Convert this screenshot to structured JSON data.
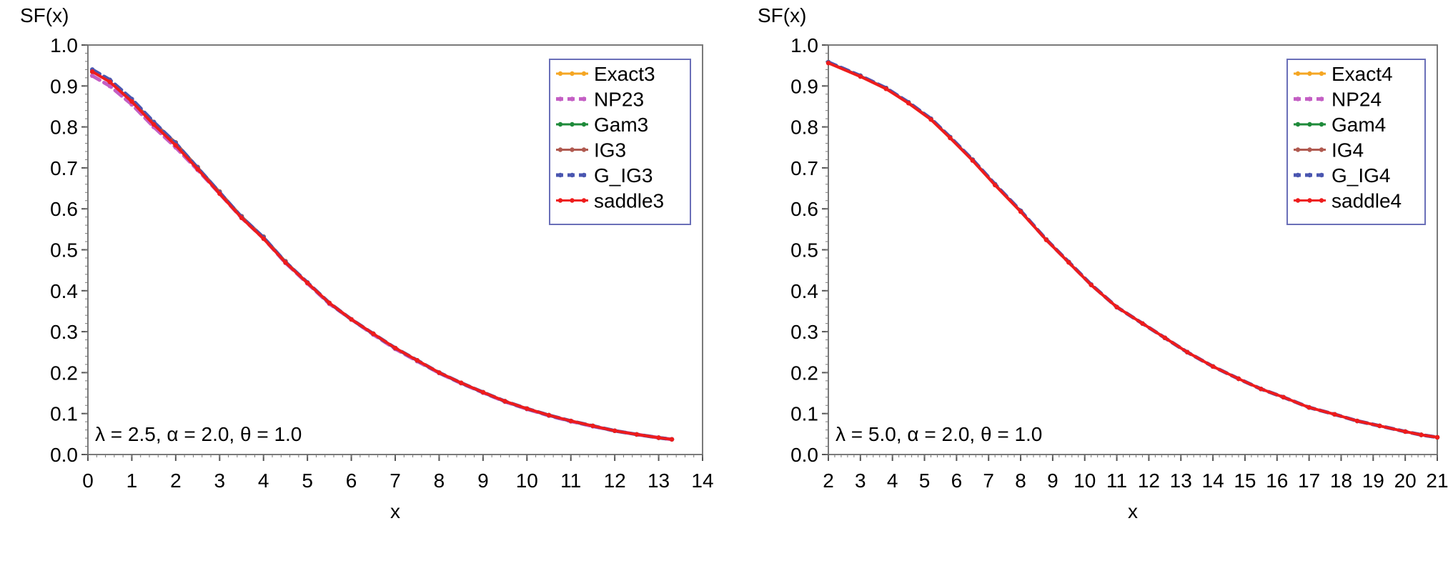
{
  "colors": {
    "exact": "#f5a623",
    "np2": "#c45fc4",
    "gam": "#1e8a3a",
    "ig": "#b05a50",
    "g_ig": "#4a56b0",
    "saddle": "#ee1c1c",
    "legend_border": "#6a6fb8",
    "frame": "#7a7a7a"
  },
  "chart_data": [
    {
      "type": "line",
      "ylabel": "SF(x)",
      "xlabel": "x",
      "xlim": [
        0,
        14
      ],
      "ylim": [
        0,
        1
      ],
      "xticks": [
        "0",
        "1",
        "2",
        "3",
        "4",
        "5",
        "6",
        "7",
        "8",
        "9",
        "10",
        "11",
        "12",
        "13",
        "14"
      ],
      "yticks": [
        "0.0",
        "0.1",
        "0.2",
        "0.3",
        "0.4",
        "0.5",
        "0.6",
        "0.7",
        "0.8",
        "0.9",
        "1.0"
      ],
      "annotation": "λ = 2.5, α = 2.0, θ = 1.0",
      "legend_position": "top-right",
      "x": [
        0.1,
        0.5,
        1.0,
        1.5,
        2.0,
        2.5,
        3.0,
        3.5,
        4.0,
        4.5,
        5.0,
        5.5,
        6.0,
        6.5,
        7.0,
        7.5,
        8.0,
        8.5,
        9.0,
        9.5,
        10.0,
        10.5,
        11.0,
        11.5,
        12.0,
        12.5,
        13.0,
        13.3
      ],
      "series": [
        {
          "name": "Exact3",
          "color_key": "exact",
          "style": "solid",
          "values": [
            0.935,
            0.91,
            0.865,
            0.81,
            0.76,
            0.7,
            0.64,
            0.58,
            0.53,
            0.47,
            0.42,
            0.37,
            0.33,
            0.295,
            0.26,
            0.23,
            0.2,
            0.175,
            0.152,
            0.13,
            0.112,
            0.096,
            0.082,
            0.07,
            0.058,
            0.049,
            0.041,
            0.037
          ]
        },
        {
          "name": "NP23",
          "color_key": "np2",
          "style": "dashed",
          "values": [
            0.925,
            0.9,
            0.855,
            0.8,
            0.75,
            0.695,
            0.637,
            0.578,
            0.528,
            0.468,
            0.418,
            0.368,
            0.33,
            0.293,
            0.258,
            0.228,
            0.199,
            0.174,
            0.151,
            0.129,
            0.111,
            0.095,
            0.081,
            0.069,
            0.058,
            0.049,
            0.041,
            0.037
          ]
        },
        {
          "name": "Gam3",
          "color_key": "gam",
          "style": "solid",
          "values": [
            0.935,
            0.91,
            0.865,
            0.812,
            0.762,
            0.702,
            0.642,
            0.582,
            0.532,
            0.472,
            0.42,
            0.37,
            0.33,
            0.295,
            0.26,
            0.23,
            0.2,
            0.175,
            0.152,
            0.13,
            0.112,
            0.096,
            0.082,
            0.07,
            0.058,
            0.049,
            0.041,
            0.037
          ]
        },
        {
          "name": "IG3",
          "color_key": "ig",
          "style": "solid",
          "values": [
            0.935,
            0.91,
            0.865,
            0.812,
            0.762,
            0.702,
            0.642,
            0.582,
            0.532,
            0.472,
            0.42,
            0.37,
            0.33,
            0.295,
            0.26,
            0.23,
            0.2,
            0.175,
            0.152,
            0.13,
            0.112,
            0.096,
            0.082,
            0.07,
            0.058,
            0.049,
            0.041,
            0.037
          ]
        },
        {
          "name": "G_IG3",
          "color_key": "g_ig",
          "style": "dashed",
          "values": [
            0.94,
            0.915,
            0.868,
            0.812,
            0.76,
            0.7,
            0.64,
            0.58,
            0.53,
            0.47,
            0.42,
            0.37,
            0.33,
            0.295,
            0.26,
            0.23,
            0.2,
            0.175,
            0.152,
            0.13,
            0.112,
            0.096,
            0.082,
            0.07,
            0.058,
            0.049,
            0.041,
            0.037
          ]
        },
        {
          "name": "saddle3",
          "color_key": "saddle",
          "style": "solid",
          "values": [
            0.935,
            0.91,
            0.862,
            0.806,
            0.755,
            0.697,
            0.637,
            0.578,
            0.527,
            0.469,
            0.419,
            0.37,
            0.33,
            0.295,
            0.26,
            0.23,
            0.2,
            0.175,
            0.152,
            0.13,
            0.112,
            0.096,
            0.082,
            0.07,
            0.058,
            0.049,
            0.041,
            0.037
          ]
        }
      ]
    },
    {
      "type": "line",
      "ylabel": "SF(x)",
      "xlabel": "x",
      "xlim": [
        2,
        21
      ],
      "ylim": [
        0,
        1
      ],
      "xticks": [
        "2",
        "3",
        "4",
        "5",
        "6",
        "7",
        "8",
        "9",
        "10",
        "11",
        "12",
        "13",
        "14",
        "15",
        "16",
        "17",
        "18",
        "19",
        "20",
        "21"
      ],
      "yticks": [
        "0.0",
        "0.1",
        "0.2",
        "0.3",
        "0.4",
        "0.5",
        "0.6",
        "0.7",
        "0.8",
        "0.9",
        "1.0"
      ],
      "annotation": "λ = 5.0, α = 2.0, θ = 1.0",
      "legend_position": "top-right",
      "x": [
        2.0,
        3.0,
        3.8,
        4.5,
        5.2,
        5.8,
        6.5,
        7.2,
        8.0,
        8.8,
        9.5,
        10.2,
        11.0,
        11.8,
        12.5,
        13.2,
        14.0,
        14.8,
        15.5,
        16.2,
        17.0,
        17.8,
        18.5,
        19.2,
        20.0,
        20.5,
        21.0
      ],
      "series": [
        {
          "name": "Exact4",
          "color_key": "exact",
          "style": "solid",
          "values": [
            0.958,
            0.925,
            0.895,
            0.86,
            0.82,
            0.775,
            0.72,
            0.66,
            0.595,
            0.525,
            0.47,
            0.415,
            0.36,
            0.32,
            0.285,
            0.25,
            0.215,
            0.185,
            0.16,
            0.14,
            0.115,
            0.098,
            0.082,
            0.07,
            0.056,
            0.048,
            0.042
          ]
        },
        {
          "name": "NP24",
          "color_key": "np2",
          "style": "dashed",
          "values": [
            0.958,
            0.925,
            0.895,
            0.86,
            0.82,
            0.775,
            0.72,
            0.66,
            0.595,
            0.525,
            0.47,
            0.415,
            0.36,
            0.32,
            0.285,
            0.25,
            0.215,
            0.185,
            0.16,
            0.14,
            0.115,
            0.098,
            0.082,
            0.07,
            0.056,
            0.048,
            0.042
          ]
        },
        {
          "name": "Gam4",
          "color_key": "gam",
          "style": "solid",
          "values": [
            0.958,
            0.925,
            0.895,
            0.86,
            0.82,
            0.775,
            0.72,
            0.66,
            0.595,
            0.525,
            0.47,
            0.415,
            0.36,
            0.32,
            0.285,
            0.25,
            0.215,
            0.185,
            0.16,
            0.14,
            0.115,
            0.098,
            0.082,
            0.07,
            0.056,
            0.048,
            0.042
          ]
        },
        {
          "name": "IG4",
          "color_key": "ig",
          "style": "solid",
          "values": [
            0.958,
            0.925,
            0.895,
            0.86,
            0.82,
            0.775,
            0.72,
            0.66,
            0.595,
            0.525,
            0.47,
            0.415,
            0.36,
            0.32,
            0.285,
            0.25,
            0.215,
            0.185,
            0.16,
            0.14,
            0.115,
            0.098,
            0.082,
            0.07,
            0.056,
            0.048,
            0.042
          ]
        },
        {
          "name": "G_IG4",
          "color_key": "g_ig",
          "style": "dashed",
          "values": [
            0.958,
            0.925,
            0.895,
            0.86,
            0.82,
            0.775,
            0.72,
            0.66,
            0.595,
            0.525,
            0.47,
            0.415,
            0.36,
            0.32,
            0.285,
            0.25,
            0.215,
            0.185,
            0.16,
            0.14,
            0.115,
            0.098,
            0.082,
            0.07,
            0.056,
            0.048,
            0.042
          ]
        },
        {
          "name": "saddle4",
          "color_key": "saddle",
          "style": "solid",
          "values": [
            0.956,
            0.923,
            0.893,
            0.858,
            0.818,
            0.773,
            0.718,
            0.658,
            0.593,
            0.524,
            0.469,
            0.414,
            0.36,
            0.32,
            0.285,
            0.25,
            0.215,
            0.185,
            0.16,
            0.14,
            0.115,
            0.098,
            0.082,
            0.07,
            0.056,
            0.048,
            0.042
          ]
        }
      ]
    }
  ]
}
